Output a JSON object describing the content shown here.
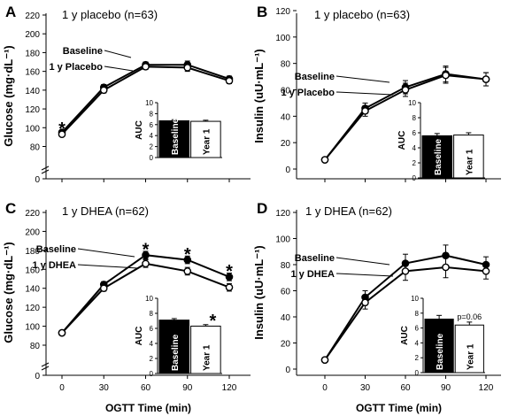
{
  "figure": {
    "xlabel": "OGTT Time (min)",
    "bar_labels": [
      "Baseline",
      "Year 1"
    ],
    "inset_ylabel": "AUC"
  },
  "chart_data": [
    {
      "panel_label": "A",
      "type": "line",
      "title": "1 y placebo (n=63)",
      "ylabel": "Glucose (mg·dL⁻¹)",
      "xlabel": "",
      "x": [
        0,
        30,
        60,
        90,
        120
      ],
      "xticks": [],
      "ylim": [
        80,
        220
      ],
      "yticks": [
        0,
        80,
        100,
        120,
        140,
        160,
        180,
        200,
        220
      ],
      "axis_break": true,
      "series": [
        {
          "name": "Baseline",
          "marker": "filled",
          "values": [
            95,
            143,
            167,
            167,
            152
          ],
          "errors": [
            2,
            3,
            3,
            4,
            3
          ]
        },
        {
          "name": "1 y Placebo",
          "marker": "open",
          "values": [
            93,
            140,
            165,
            164,
            150
          ],
          "errors": [
            2,
            3,
            3,
            4,
            3
          ]
        }
      ],
      "annotations": [
        {
          "x": 0,
          "y": 104,
          "text": "*"
        }
      ],
      "inset": {
        "ylabel": "AUC",
        "yticks": [
          0,
          2,
          4,
          6,
          8,
          10
        ],
        "ylim": [
          0,
          10
        ],
        "bars": [
          {
            "label": "Baseline",
            "value": 6.7,
            "error": 0.2,
            "fill": "#000000"
          },
          {
            "label": "Year 1",
            "value": 6.6,
            "error": 0.2,
            "fill": "#ffffff"
          }
        ]
      }
    },
    {
      "panel_label": "B",
      "type": "line",
      "title": "1 y placebo (n=63)",
      "ylabel": "Insulin (uU·mL⁻¹)",
      "xlabel": "",
      "x": [
        0,
        30,
        60,
        90,
        120
      ],
      "xticks": [],
      "ylim": [
        0,
        120
      ],
      "yticks": [
        0,
        20,
        40,
        60,
        80,
        100,
        120
      ],
      "axis_break": false,
      "series": [
        {
          "name": "Baseline",
          "marker": "filled",
          "values": [
            7,
            46,
            62,
            72,
            68
          ],
          "errors": [
            1,
            4,
            5,
            6,
            5
          ]
        },
        {
          "name": "1 y Placebo",
          "marker": "open",
          "values": [
            7,
            44,
            60,
            71,
            68
          ],
          "errors": [
            1,
            4,
            5,
            6,
            5
          ]
        }
      ],
      "annotations": [],
      "inset": {
        "ylabel": "AUC",
        "yticks": [
          0,
          2,
          4,
          6,
          8,
          10
        ],
        "ylim": [
          0,
          10
        ],
        "bars": [
          {
            "label": "Baseline",
            "value": 5.6,
            "error": 0.3,
            "fill": "#000000"
          },
          {
            "label": "Year 1",
            "value": 5.7,
            "error": 0.3,
            "fill": "#ffffff"
          }
        ]
      }
    },
    {
      "panel_label": "C",
      "type": "line",
      "title": "1 y DHEA (n=62)",
      "ylabel": "Glucose (mg·dL⁻¹)",
      "xlabel": "OGTT Time (min)",
      "x": [
        0,
        30,
        60,
        90,
        120
      ],
      "xticks": [
        "0",
        "30",
        "60",
        "90",
        "120"
      ],
      "ylim": [
        80,
        220
      ],
      "yticks": [
        0,
        80,
        100,
        120,
        140,
        160,
        180,
        200,
        220
      ],
      "axis_break": true,
      "series": [
        {
          "name": "Baseline",
          "marker": "filled",
          "values": [
            93,
            144,
            175,
            170,
            152
          ],
          "errors": [
            2,
            3,
            4,
            4,
            4
          ]
        },
        {
          "name": "1 y DHEA",
          "marker": "open",
          "values": [
            93,
            140,
            166,
            158,
            141
          ],
          "errors": [
            2,
            3,
            4,
            4,
            4
          ]
        }
      ],
      "annotations": [
        {
          "x": 60,
          "y": 186,
          "text": "*"
        },
        {
          "x": 90,
          "y": 181,
          "text": "*"
        },
        {
          "x": 120,
          "y": 163,
          "text": "*"
        }
      ],
      "inset": {
        "ylabel": "AUC",
        "yticks": [
          0,
          2,
          4,
          6,
          8,
          10
        ],
        "ylim": [
          0,
          10
        ],
        "annotation": "*",
        "bars": [
          {
            "label": "Baseline",
            "value": 7.1,
            "error": 0.2,
            "fill": "#000000"
          },
          {
            "label": "Year 1",
            "value": 6.3,
            "error": 0.2,
            "fill": "#ffffff"
          }
        ]
      }
    },
    {
      "panel_label": "D",
      "type": "line",
      "title": "1 y DHEA (n=62)",
      "ylabel": "Insulin (uU·mL⁻¹)",
      "xlabel": "OGTT Time (min)",
      "x": [
        0,
        30,
        60,
        90,
        120
      ],
      "xticks": [
        "0",
        "30",
        "60",
        "90",
        "120"
      ],
      "ylim": [
        0,
        120
      ],
      "yticks": [
        0,
        20,
        40,
        60,
        80,
        100,
        120
      ],
      "axis_break": false,
      "series": [
        {
          "name": "Baseline",
          "marker": "filled",
          "values": [
            7,
            55,
            81,
            87,
            80
          ],
          "errors": [
            1,
            5,
            7,
            8,
            6
          ]
        },
        {
          "name": "1 y DHEA",
          "marker": "open",
          "values": [
            7,
            51,
            75,
            78,
            75
          ],
          "errors": [
            1,
            5,
            7,
            8,
            6
          ]
        }
      ],
      "annotations": [],
      "inset": {
        "ylabel": "AUC",
        "yticks": [
          0,
          2,
          4,
          6,
          8,
          10
        ],
        "ylim": [
          0,
          10
        ],
        "annotation": "p=0.06",
        "bars": [
          {
            "label": "Baseline",
            "value": 7.2,
            "error": 0.5,
            "fill": "#000000"
          },
          {
            "label": "Year 1",
            "value": 6.4,
            "error": 0.4,
            "fill": "#ffffff"
          }
        ]
      }
    }
  ]
}
